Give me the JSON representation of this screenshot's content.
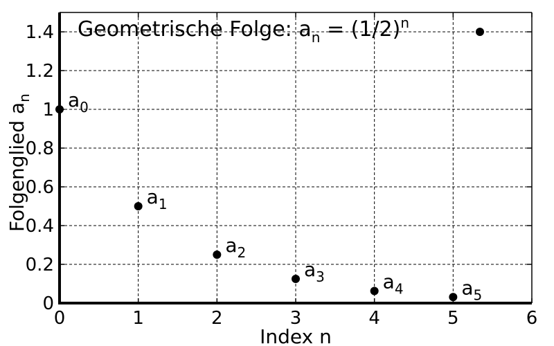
{
  "chart_data": {
    "type": "scatter",
    "title": "Geometrische Folge: a",
    "title_sub": "n",
    "title_rest": " = (1/2)",
    "title_sup": "n",
    "xlabel": "Index n",
    "ylabel": "Folgenglied a",
    "ylabel_sub": "n",
    "xlim": [
      0,
      6
    ],
    "ylim": [
      0,
      1.5
    ],
    "xticks": [
      "0",
      "1",
      "2",
      "3",
      "4",
      "5",
      "6"
    ],
    "yticks": [
      "0",
      "0.2",
      "0.4",
      "0.6",
      "0.8",
      "1",
      "1.2",
      "1.4"
    ],
    "grid": true,
    "legend": "top-right",
    "marker_color": "#000000",
    "points": [
      {
        "x": 0,
        "y": 1,
        "label": "a",
        "label_sub": "0"
      },
      {
        "x": 1,
        "y": 0.5,
        "label": "a",
        "label_sub": "1"
      },
      {
        "x": 2,
        "y": 0.25,
        "label": "a",
        "label_sub": "2"
      },
      {
        "x": 3,
        "y": 0.125,
        "label": "a",
        "label_sub": "3"
      },
      {
        "x": 4,
        "y": 0.0625,
        "label": "a",
        "label_sub": "4"
      },
      {
        "x": 5,
        "y": 0.03125,
        "label": "a",
        "label_sub": "5"
      }
    ]
  }
}
